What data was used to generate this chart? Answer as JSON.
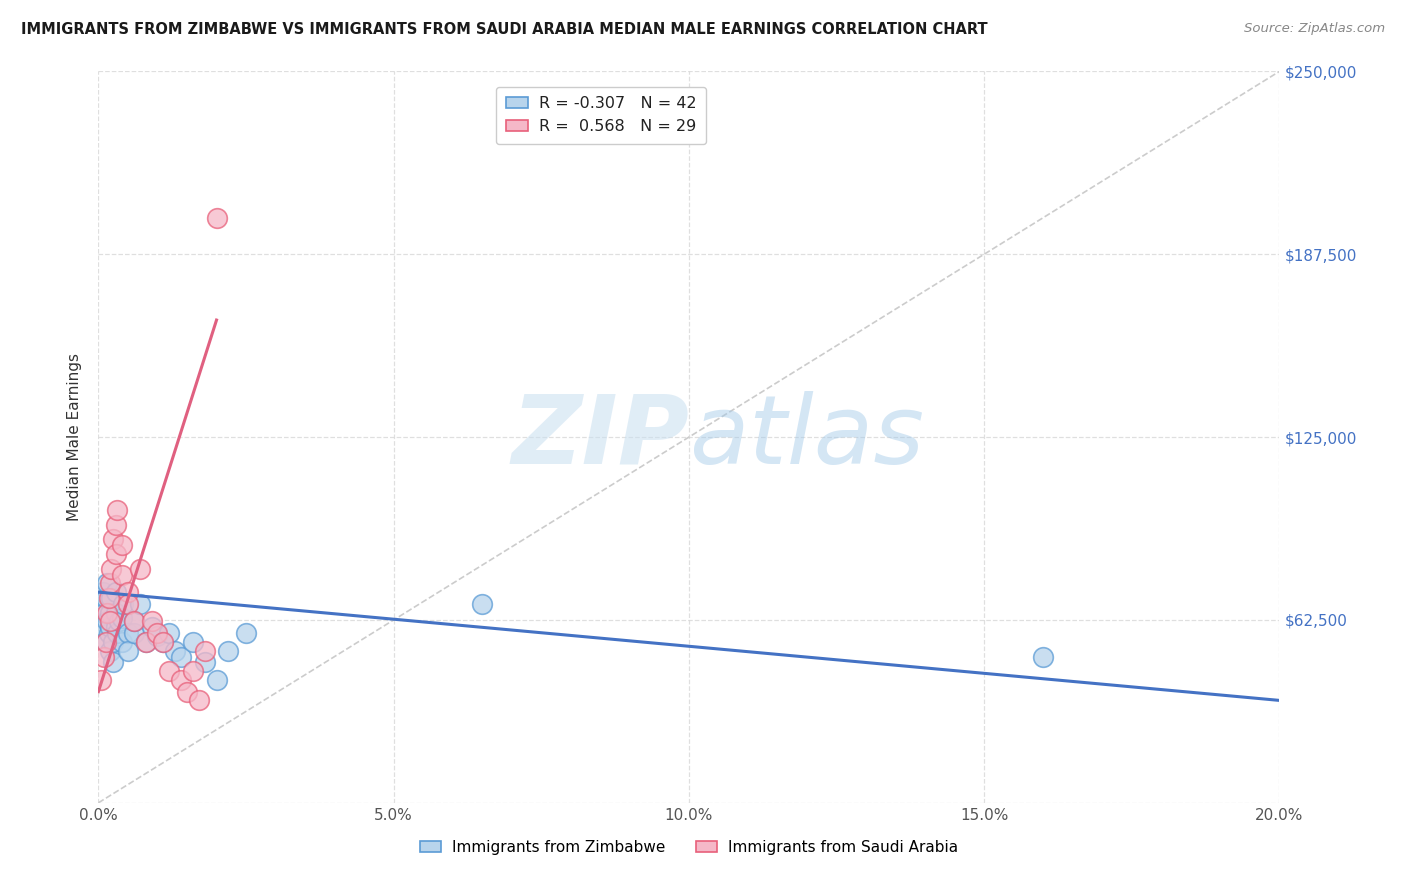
{
  "title": "IMMIGRANTS FROM ZIMBABWE VS IMMIGRANTS FROM SAUDI ARABIA MEDIAN MALE EARNINGS CORRELATION CHART",
  "source": "Source: ZipAtlas.com",
  "ylabel": "Median Male Earnings",
  "xlim": [
    0.0,
    0.2
  ],
  "ylim": [
    0,
    250000
  ],
  "yticks": [
    0,
    62500,
    125000,
    187500,
    250000
  ],
  "ytick_labels": [
    "",
    "$62,500",
    "$125,000",
    "$187,500",
    "$250,000"
  ],
  "xticks": [
    0.0,
    0.05,
    0.1,
    0.15,
    0.2
  ],
  "xtick_labels": [
    "0.0%",
    "5.0%",
    "10.0%",
    "15.0%",
    "20.0%"
  ],
  "background_color": "#ffffff",
  "grid_color": "#d8d8d8",
  "watermark_zip": "ZIP",
  "watermark_atlas": "atlas",
  "legend_R_blue": "-0.307",
  "legend_N_blue": "42",
  "legend_R_pink": "0.568",
  "legend_N_pink": "29",
  "blue_fill": "#b8d4ec",
  "pink_fill": "#f5b8c8",
  "blue_edge": "#5b9bd5",
  "pink_edge": "#e8607a",
  "blue_line": "#4472c4",
  "pink_line": "#e06080",
  "label_blue": "Immigrants from Zimbabwe",
  "label_pink": "Immigrants from Saudi Arabia",
  "blue_x": [
    0.0005,
    0.0008,
    0.001,
    0.001,
    0.0012,
    0.0013,
    0.0015,
    0.0015,
    0.0018,
    0.002,
    0.002,
    0.002,
    0.0022,
    0.0025,
    0.0025,
    0.003,
    0.003,
    0.003,
    0.0032,
    0.0035,
    0.004,
    0.004,
    0.0042,
    0.005,
    0.005,
    0.006,
    0.006,
    0.007,
    0.008,
    0.009,
    0.01,
    0.011,
    0.012,
    0.013,
    0.014,
    0.016,
    0.018,
    0.02,
    0.022,
    0.025,
    0.065,
    0.16
  ],
  "blue_y": [
    68000,
    72000,
    60000,
    65000,
    55000,
    70000,
    62000,
    75000,
    58000,
    52000,
    60000,
    65000,
    70000,
    55000,
    48000,
    65000,
    60000,
    72000,
    58000,
    62000,
    55000,
    63000,
    68000,
    58000,
    52000,
    58000,
    62000,
    68000,
    55000,
    60000,
    57000,
    55000,
    58000,
    52000,
    50000,
    55000,
    48000,
    42000,
    52000,
    58000,
    68000,
    50000
  ],
  "pink_x": [
    0.0005,
    0.001,
    0.0012,
    0.0015,
    0.0018,
    0.002,
    0.002,
    0.0022,
    0.0025,
    0.003,
    0.003,
    0.0032,
    0.004,
    0.004,
    0.005,
    0.005,
    0.006,
    0.007,
    0.008,
    0.009,
    0.01,
    0.011,
    0.012,
    0.014,
    0.015,
    0.016,
    0.017,
    0.018,
    0.02
  ],
  "pink_y": [
    42000,
    50000,
    55000,
    65000,
    70000,
    62000,
    75000,
    80000,
    90000,
    85000,
    95000,
    100000,
    88000,
    78000,
    72000,
    68000,
    62000,
    80000,
    55000,
    62000,
    58000,
    55000,
    45000,
    42000,
    38000,
    45000,
    35000,
    52000,
    200000
  ],
  "blue_trend_x0": 0.0,
  "blue_trend_x1": 0.2,
  "blue_trend_y0": 72000,
  "blue_trend_y1": 35000,
  "pink_trend_x0": 0.0,
  "pink_trend_x1": 0.02,
  "pink_trend_y0": 38000,
  "pink_trend_y1": 165000
}
